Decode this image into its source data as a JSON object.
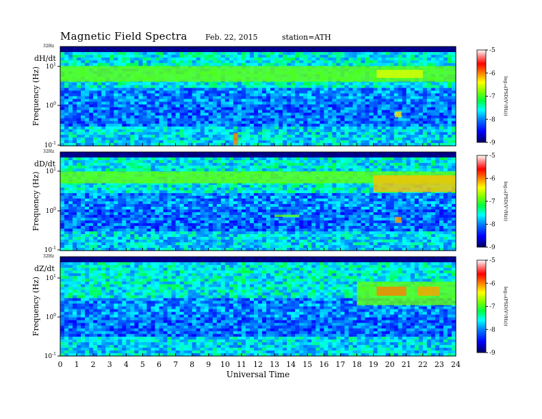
{
  "header": {
    "title": "Magnetic  Field  Spectra",
    "date": "Feb. 22, 2015",
    "station": "station=ATH"
  },
  "colorbar": {
    "label": "log₁₀(PSD(V²/Hz))",
    "ticks": [
      "-5",
      "-6",
      "-7",
      "-8",
      "-9"
    ],
    "colors": [
      "#000060",
      "#0000ff",
      "#0080ff",
      "#00ffff",
      "#00ff40",
      "#80ff00",
      "#ffff00",
      "#ff8000",
      "#ff0000",
      "#ff8080",
      "#ffffff"
    ]
  },
  "chart_data": [
    {
      "type": "heatmap",
      "title": "dH/dt",
      "ylabel": "Frequency (Hz)",
      "ytop_label": "32Hz",
      "yticks": [
        {
          "base": "10",
          "exp": "1"
        },
        {
          "base": "10",
          "exp": "0"
        },
        {
          "base": "10",
          "exp": "-1"
        }
      ],
      "xlim": [
        0,
        24
      ],
      "yscale": "log",
      "features": [
        {
          "name": "green band",
          "t0": 0,
          "t1": 24,
          "f0": 4,
          "f1": 10,
          "level": -6.9
        },
        {
          "name": "event",
          "t0": 10.5,
          "t1": 10.8,
          "f0": 0.1,
          "f1": 0.2,
          "level": -6.0
        },
        {
          "name": "event",
          "t0": 20.3,
          "t1": 20.7,
          "f0": 0.5,
          "f1": 0.7,
          "level": -6.3
        },
        {
          "name": "event",
          "t0": 19.2,
          "t1": 22,
          "f0": 5,
          "f1": 8,
          "level": -6.5
        }
      ]
    },
    {
      "type": "heatmap",
      "title": "dD/dt",
      "ylabel": "Frequency (Hz)",
      "ytop_label": "32Hz",
      "yticks": [
        {
          "base": "10",
          "exp": "1"
        },
        {
          "base": "10",
          "exp": "0"
        },
        {
          "base": "10",
          "exp": "-1"
        }
      ],
      "xlim": [
        0,
        24
      ],
      "yscale": "log",
      "features": [
        {
          "name": "green band",
          "t0": 0,
          "t1": 24,
          "f0": 5,
          "f1": 10,
          "level": -6.9
        },
        {
          "name": "event",
          "t0": 19,
          "t1": 24,
          "f0": 3,
          "f1": 8,
          "level": -6.2
        },
        {
          "name": "event",
          "t0": 20.3,
          "t1": 20.7,
          "f0": 0.5,
          "f1": 0.7,
          "level": -6.1
        },
        {
          "name": "event",
          "t0": 13,
          "t1": 14.5,
          "f0": 0.7,
          "f1": 0.8,
          "level": -6.9
        }
      ]
    },
    {
      "type": "heatmap",
      "title": "dZ/dt",
      "ylabel": "Frequency (Hz)",
      "ytop_label": "32Hz",
      "yticks": [
        {
          "base": "10",
          "exp": "1"
        },
        {
          "base": "10",
          "exp": "0"
        },
        {
          "base": "10",
          "exp": "-1"
        }
      ],
      "xlim": [
        0,
        24
      ],
      "yscale": "log",
      "features": [
        {
          "name": "green band",
          "t0": 18,
          "t1": 24,
          "f0": 2,
          "f1": 8,
          "level": -6.9
        },
        {
          "name": "event",
          "t0": 19.2,
          "t1": 21,
          "f0": 3.5,
          "f1": 6,
          "level": -6.0
        },
        {
          "name": "event",
          "t0": 21.7,
          "t1": 23,
          "f0": 3.5,
          "f1": 6,
          "level": -6.1
        }
      ]
    }
  ],
  "xaxis": {
    "label": "Universal Time",
    "ticks": [
      "0",
      "1",
      "2",
      "3",
      "4",
      "5",
      "6",
      "7",
      "8",
      "9",
      "10",
      "11",
      "12",
      "13",
      "14",
      "15",
      "16",
      "17",
      "18",
      "19",
      "20",
      "21",
      "22",
      "23",
      "24"
    ]
  }
}
